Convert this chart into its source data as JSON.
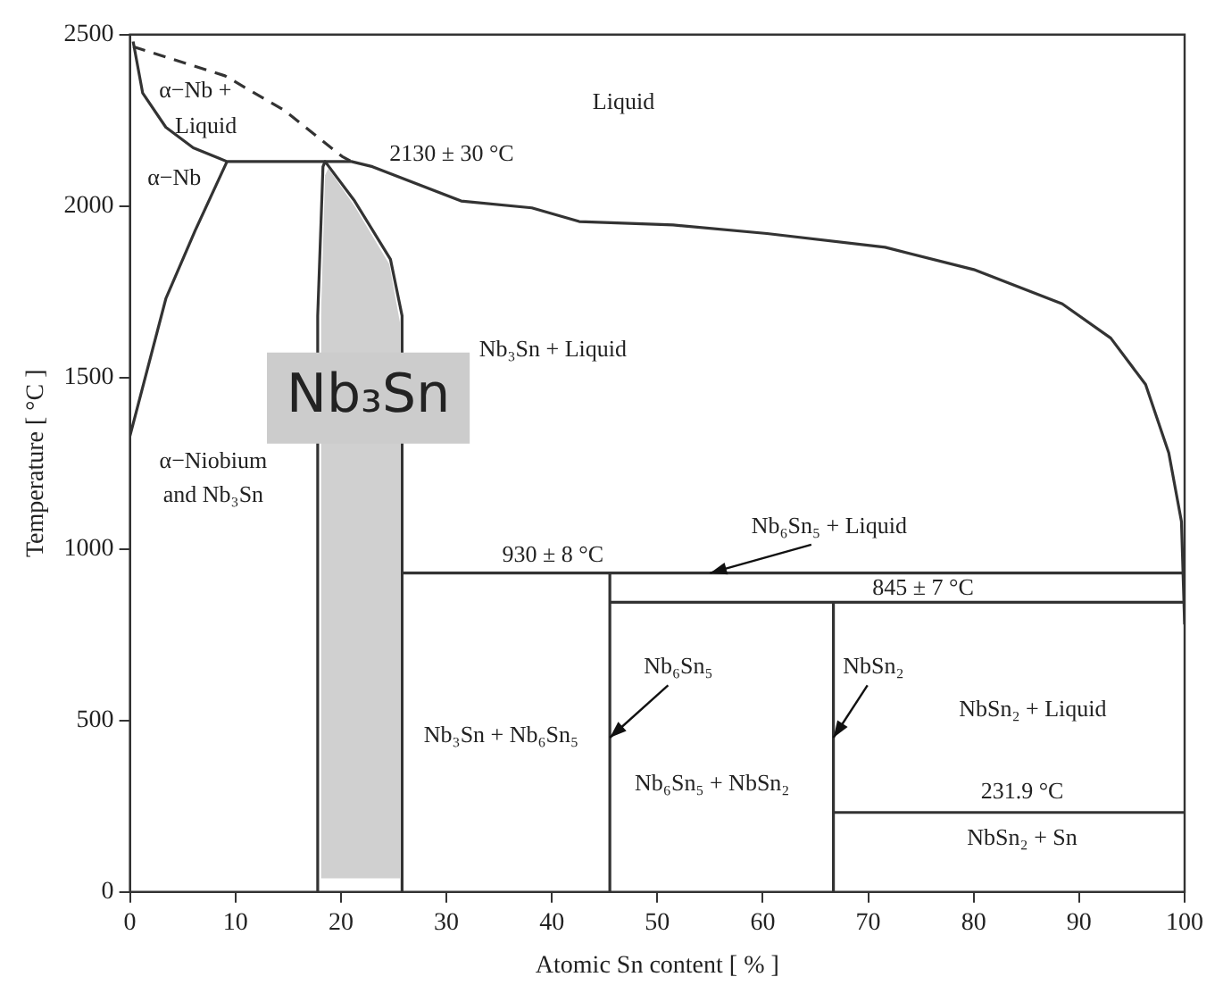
{
  "chart_data": {
    "type": "line",
    "xlabel": "Atomic Sn content [ % ]",
    "ylabel": "Temperature [ °C ]",
    "xlim": [
      0,
      100
    ],
    "xticks": [
      0,
      10,
      20,
      30,
      40,
      50,
      60,
      70,
      80,
      90,
      100
    ],
    "ylim": [
      0,
      2500
    ],
    "yticks": [
      0,
      500,
      1000,
      1500,
      2000,
      2500
    ],
    "grid": false,
    "legend": false,
    "marker": "none",
    "series": [
      {
        "type": "area",
        "color": "#d0d0d0",
        "x": [
          18.1,
          18.1,
          18.5,
          18.8,
          21.3,
          24.6,
          25.6,
          25.6
        ],
        "values": [
          40,
          1670,
          2090,
          2110,
          2000,
          1830,
          1660,
          40
        ]
      },
      {
        "color": "#333333",
        "x": [
          0.3,
          1.2,
          3.4,
          6.0,
          8.4,
          9.2,
          18.5,
          21.0,
          23.0,
          31.4,
          38.1,
          42.6,
          51.5,
          60.4,
          71.6,
          80.0,
          88.4,
          93.0,
          96.3,
          98.5,
          99.7,
          100
        ],
        "values": [
          2480,
          2330,
          2230,
          2170,
          2140,
          2130,
          2130,
          2130,
          2115,
          2015,
          1995,
          1955,
          1945,
          1920,
          1880,
          1815,
          1715,
          1615,
          1480,
          1280,
          1080,
          780
        ]
      },
      {
        "color": "#333333",
        "x": [
          0,
          3.4,
          6.2,
          9.2
        ],
        "values": [
          1330,
          1730,
          1930,
          2130
        ]
      },
      {
        "color": "#333333",
        "line_style": "dashed",
        "x": [
          0.3,
          9.0,
          14.6,
          20.1,
          21.0
        ],
        "values": [
          2465,
          2380,
          2280,
          2145,
          2130
        ]
      },
      {
        "color": "#333333",
        "x": [
          17.8,
          17.8,
          18.3,
          18.5,
          21.3,
          24.7,
          25.8,
          25.8
        ],
        "values": [
          0,
          1680,
          2115,
          2130,
          2015,
          1845,
          1680,
          0
        ]
      },
      {
        "color": "#333333",
        "x": [
          25.8,
          99.8
        ],
        "values": [
          930,
          930
        ]
      },
      {
        "color": "#333333",
        "x": [
          45.5,
          45.5
        ],
        "values": [
          0,
          930
        ]
      },
      {
        "color": "#333333",
        "x": [
          45.5,
          99.9
        ],
        "values": [
          845,
          845
        ]
      },
      {
        "color": "#333333",
        "x": [
          66.7,
          66.7
        ],
        "values": [
          0,
          845
        ]
      },
      {
        "color": "#333333",
        "x": [
          66.7,
          100
        ],
        "values": [
          231.9,
          231.9
        ]
      }
    ],
    "annotations": [
      "α−Nb +",
      "Liquid",
      "Liquid",
      "2130 ± 30 °C",
      "α−Nb",
      "Nb₃Sn + Liquid",
      "Nb₃Sn",
      "α−Niobium",
      "and Nb₃Sn",
      {
        "text": "Nb₆Sn₅ + Liquid",
        "x": 55,
        "y": 930
      },
      "930 ± 8 °C",
      "845 ± 7 °C",
      {
        "text": "Nb₆Sn₅",
        "x": 45.5,
        "y": 450
      },
      {
        "text": "NbSn₂",
        "x": 66.7,
        "y": 450
      },
      "NbSn₂ + Liquid",
      "Nb₃Sn + Nb₆Sn₅",
      "Nb₆Sn₅ + NbSn₂",
      "231.9 °C",
      "NbSn₂ + Sn"
    ]
  }
}
